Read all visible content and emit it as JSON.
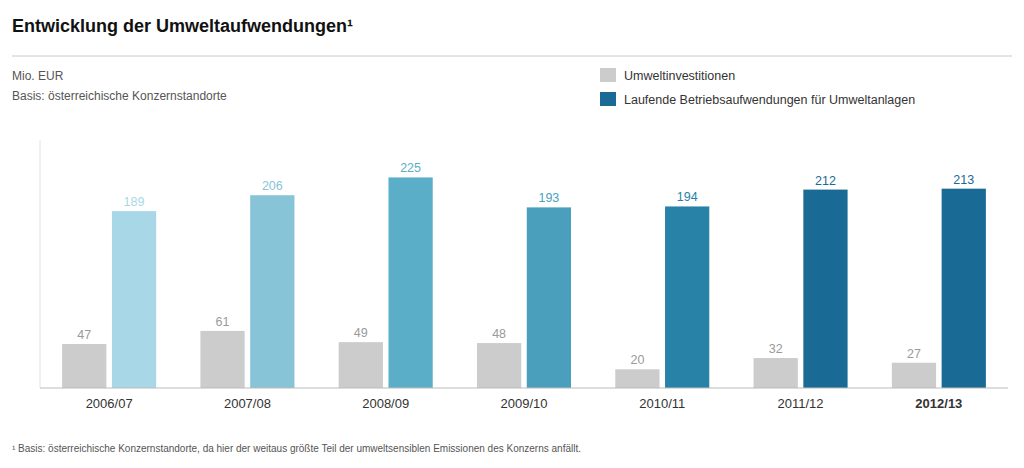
{
  "chart_data": {
    "type": "bar",
    "title": "Entwicklung der Umweltaufwendungen¹",
    "ylabel": "Mio. EUR",
    "subtitle": "Basis: österreichische Konzernstandorte",
    "annotations": [
      "¹ Basis: österreichische Konzernstandorte, da hier der weitaus größte Teil der umweltsensiblen Emissionen des Konzerns anfällt."
    ],
    "categories": [
      "2006/07",
      "2007/08",
      "2008/09",
      "2009/10",
      "2010/11",
      "2011/12",
      "2012/13"
    ],
    "series": [
      {
        "name": "Umweltinvestitionen",
        "color": "#cccccc",
        "values": [
          47,
          61,
          49,
          48,
          20,
          32,
          27
        ]
      },
      {
        "name": "Laufende Betriebsaufwendungen für Umweltanlagen",
        "color": "#1a6a96",
        "colors": [
          "#a8d8e8",
          "#88c4d8",
          "#5aaec8",
          "#4aa0bc",
          "#2882a8",
          "#1a6a96",
          "#1a6a96"
        ],
        "values": [
          189,
          206,
          225,
          193,
          194,
          212,
          213
        ]
      }
    ],
    "ylim": [
      0,
      265
    ],
    "grid": false,
    "legend": "top-right",
    "data_labels": true,
    "tick_labels": "x"
  }
}
